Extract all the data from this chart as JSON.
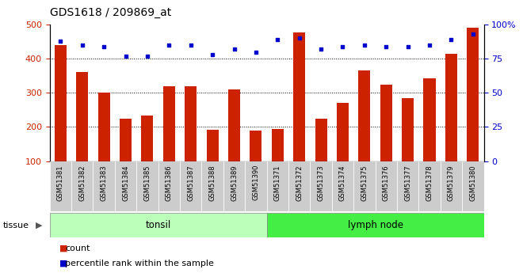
{
  "title": "GDS1618 / 209869_at",
  "categories": [
    "GSM51381",
    "GSM51382",
    "GSM51383",
    "GSM51384",
    "GSM51385",
    "GSM51386",
    "GSM51387",
    "GSM51388",
    "GSM51389",
    "GSM51390",
    "GSM51371",
    "GSM51372",
    "GSM51373",
    "GSM51374",
    "GSM51375",
    "GSM51376",
    "GSM51377",
    "GSM51378",
    "GSM51379",
    "GSM51380"
  ],
  "counts": [
    440,
    362,
    300,
    224,
    233,
    320,
    320,
    192,
    310,
    190,
    195,
    478,
    224,
    270,
    366,
    325,
    284,
    342,
    415,
    492
  ],
  "percentiles": [
    88,
    85,
    84,
    77,
    77,
    85,
    85,
    78,
    82,
    80,
    89,
    90,
    82,
    84,
    85,
    84,
    84,
    85,
    89,
    93
  ],
  "tonsil_count": 10,
  "lymph_count": 10,
  "bar_color": "#cc2200",
  "dot_color": "#0000cc",
  "bar_bottom": 100,
  "ylim_left": [
    100,
    500
  ],
  "ylim_right": [
    0,
    100
  ],
  "yticks_left": [
    100,
    200,
    300,
    400,
    500
  ],
  "yticks_right": [
    0,
    25,
    50,
    75,
    100
  ],
  "grid_values": [
    200,
    300,
    400
  ],
  "tissue_label": "tissue",
  "tissue1_label": "tonsil",
  "tissue2_label": "lymph node",
  "legend_count": "count",
  "legend_percentile": "percentile rank within the sample",
  "tonsil_color": "#bbffbb",
  "lymph_color": "#44ee44",
  "xtick_bg": "#cccccc",
  "plot_bg": "#ffffff"
}
